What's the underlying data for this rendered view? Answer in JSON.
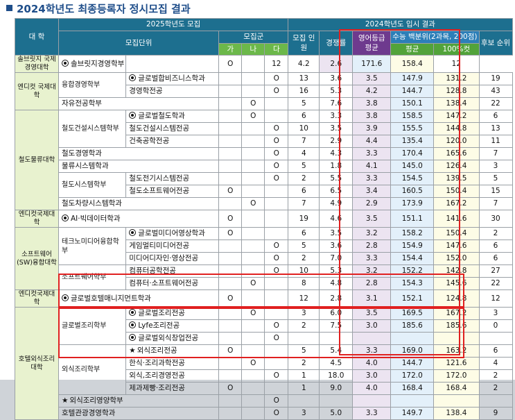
{
  "title": "2024학년도 최종등록자 정시모집 결과",
  "headers": {
    "univ": "대 학",
    "section_2025": "2025학년도 모집",
    "unit": "모집단위",
    "group": "모집군",
    "ga": "가",
    "na": "나",
    "da": "다",
    "section_2024": "2024학년도 입시 결과",
    "quota": "모집 인원",
    "rate": "경쟁률",
    "eng": "영어등급 평균",
    "score": "수능 백분위(2과목, 200점)",
    "avg": "평균",
    "cut": "100%컷",
    "reserve": "후보 순위"
  },
  "rows": [
    {
      "univ": "솔브릿지 국제경영대학",
      "univ_span": 1,
      "grp": null,
      "unit": "솔브릿지경영학부",
      "mark": "circle",
      "ga": "",
      "na": "O",
      "da": "",
      "quota": "12",
      "rate": "4.2",
      "eng": "2.6",
      "avg": "171.6",
      "cut": "158.4",
      "reserve": "12"
    },
    {
      "univ": "엔디컷 국제대학",
      "univ_span": 3,
      "grp": "융합경영학부",
      "grp_span": 2,
      "unit": "글로벌합비즈니스학과",
      "mark": "circle",
      "ga": "",
      "na": "",
      "da": "O",
      "quota": "13",
      "rate": "3.6",
      "eng": "3.5",
      "avg": "147.9",
      "cut": "131.2",
      "reserve": "19"
    },
    {
      "unit": "경영학전공",
      "mark": "",
      "ga": "",
      "na": "",
      "da": "O",
      "quota": "16",
      "rate": "5.3",
      "eng": "4.2",
      "avg": "144.7",
      "cut": "128.8",
      "reserve": "43"
    },
    {
      "grp": "자유전공학부",
      "grp_span": 1,
      "grp_full": true,
      "unit": "",
      "ga": "",
      "na": "O",
      "da": "",
      "quota": "5",
      "rate": "7.6",
      "eng": "3.8",
      "avg": "150.1",
      "cut": "138.4",
      "reserve": "22"
    },
    {
      "univ": "철도물류대학",
      "univ_span": 8,
      "grp": "철도건설시스템학부",
      "grp_span": 3,
      "unit": "글로벌철도학과",
      "mark": "circle",
      "ga": "",
      "na": "O",
      "da": "",
      "quota": "6",
      "rate": "3.3",
      "eng": "3.8",
      "avg": "158.5",
      "cut": "147.2",
      "reserve": "6"
    },
    {
      "unit": "철도건설시스템전공",
      "mark": "",
      "ga": "",
      "na": "",
      "da": "O",
      "quota": "10",
      "rate": "3.5",
      "eng": "3.9",
      "avg": "155.5",
      "cut": "144.8",
      "reserve": "13"
    },
    {
      "unit": "건축공학전공",
      "mark": "",
      "ga": "",
      "na": "",
      "da": "O",
      "quota": "7",
      "rate": "2.9",
      "eng": "4.4",
      "avg": "135.4",
      "cut": "120.0",
      "reserve": "11"
    },
    {
      "grp": "철도경영학과",
      "grp_span": 1,
      "grp_full": true,
      "unit": "",
      "ga": "",
      "na": "",
      "da": "O",
      "quota": "4",
      "rate": "4.3",
      "eng": "3.3",
      "avg": "170.4",
      "cut": "165.6",
      "reserve": "7"
    },
    {
      "grp": "물류시스템학과",
      "grp_span": 1,
      "grp_full": true,
      "unit": "",
      "ga": "",
      "na": "",
      "da": "O",
      "quota": "5",
      "rate": "1.8",
      "eng": "4.1",
      "avg": "145.0",
      "cut": "126.4",
      "reserve": "3"
    },
    {
      "grp": "철도시스템학부",
      "grp_span": 2,
      "unit": "철도전기시스템전공",
      "mark": "",
      "ga": "",
      "na": "",
      "da": "O",
      "quota": "2",
      "rate": "5.5",
      "eng": "3.3",
      "avg": "154.5",
      "cut": "139.5",
      "reserve": "5"
    },
    {
      "unit": "철도소프트웨어전공",
      "mark": "",
      "ga": "O",
      "na": "",
      "da": "",
      "quota": "6",
      "rate": "6.5",
      "eng": "3.4",
      "avg": "160.5",
      "cut": "150.4",
      "reserve": "15"
    },
    {
      "grp": "철도차량시스템학과",
      "grp_span": 1,
      "grp_full": true,
      "unit": "",
      "ga": "",
      "na": "O",
      "da": "",
      "quota": "7",
      "rate": "4.9",
      "eng": "2.9",
      "avg": "173.9",
      "cut": "167.2",
      "reserve": "7"
    },
    {
      "univ": "엔디컷국제대학",
      "univ_span": 1,
      "grp": "AI·빅데이터학과",
      "grp_span": 1,
      "grp_full": true,
      "grp_mark": "circle",
      "unit": "",
      "ga": "O",
      "na": "",
      "da": "",
      "quota": "19",
      "rate": "4.6",
      "eng": "3.5",
      "avg": "151.1",
      "cut": "141.6",
      "reserve": "30"
    },
    {
      "univ": "소프트웨어(SW)융합대학",
      "univ_span": 5,
      "grp": "테크노미디어융합학부",
      "grp_span": 3,
      "unit": "글로벌미디어영상학과",
      "mark": "circle",
      "ga": "O",
      "na": "",
      "da": "",
      "quota": "6",
      "rate": "3.5",
      "eng": "3.2",
      "avg": "158.2",
      "cut": "150.4",
      "reserve": "2"
    },
    {
      "unit": "게임멀티미디어전공",
      "mark": "",
      "ga": "",
      "na": "",
      "da": "O",
      "quota": "5",
      "rate": "3.6",
      "eng": "2.8",
      "avg": "154.9",
      "cut": "147.6",
      "reserve": "6"
    },
    {
      "unit": "미디어디자인·영상전공",
      "mark": "",
      "ga": "",
      "na": "",
      "da": "O",
      "quota": "2",
      "rate": "7.0",
      "eng": "3.3",
      "avg": "154.4",
      "cut": "152.0",
      "reserve": "6"
    },
    {
      "grp": "소프트웨어학부",
      "grp_span": 2,
      "unit": "컴퓨터공학전공",
      "mark": "",
      "ga": "",
      "na": "",
      "da": "O",
      "quota": "10",
      "rate": "5.3",
      "eng": "3.2",
      "avg": "152.2",
      "cut": "142.8",
      "reserve": "27"
    },
    {
      "unit": "컴퓨터·소프트웨어전공",
      "mark": "",
      "ga": "",
      "na": "O",
      "da": "",
      "quota": "8",
      "rate": "4.8",
      "eng": "2.8",
      "avg": "154.3",
      "cut": "145.6",
      "reserve": "22"
    },
    {
      "univ": "엔디컷국제대학",
      "univ_span": 1,
      "grp": "글로벌호텔매니지먼트학과",
      "grp_span": 1,
      "grp_full": true,
      "grp_mark": "circle",
      "unit": "",
      "ga": "O",
      "na": "",
      "da": "",
      "quota": "12",
      "rate": "2.8",
      "eng": "3.1",
      "avg": "152.1",
      "cut": "124.8",
      "reserve": "12"
    },
    {
      "univ": "호텔외식조리대학",
      "univ_span": 9,
      "grp": "글로벌조리학부",
      "grp_span": 3,
      "unit": "글로벌조리전공",
      "mark": "circle",
      "ga": "",
      "na": "O",
      "da": "",
      "quota": "3",
      "rate": "6.0",
      "eng": "3.5",
      "avg": "169.5",
      "cut": "167.2",
      "reserve": "3"
    },
    {
      "unit": "Lyfe조리전공",
      "mark": "circle",
      "ga": "",
      "na": "",
      "da": "O",
      "quota": "2",
      "rate": "7.5",
      "eng": "3.0",
      "avg": "185.6",
      "cut": "185.6",
      "reserve": "0"
    },
    {
      "unit": "글로벌외식창업전공",
      "mark": "circle",
      "ga": "",
      "na": "",
      "da": "O",
      "quota": "",
      "rate": "",
      "eng": "",
      "avg": "",
      "cut": "",
      "reserve": ""
    },
    {
      "grp": "외식조리학부",
      "grp_span": 4,
      "unit": "외식조리전공",
      "mark": "star",
      "ga": "O",
      "na": "",
      "da": "",
      "quota": "5",
      "rate": "5.4",
      "eng": "3.3",
      "avg": "169.0",
      "cut": "163.2",
      "reserve": "6"
    },
    {
      "unit": "한식·조리과학전공",
      "mark": "",
      "ga": "",
      "na": "O",
      "da": "",
      "quota": "2",
      "rate": "4.5",
      "eng": "4.0",
      "avg": "144.7",
      "cut": "121.6",
      "reserve": "4"
    },
    {
      "unit": "외식,조리경영전공",
      "mark": "",
      "ga": "",
      "na": "",
      "da": "O",
      "quota": "1",
      "rate": "18.0",
      "eng": "3.0",
      "avg": "172.0",
      "cut": "172.0",
      "reserve": "2"
    },
    {
      "unit": "제과제빵·조리전공",
      "mark": "",
      "ga": "O",
      "na": "",
      "da": "",
      "quota": "1",
      "rate": "9.0",
      "eng": "4.0",
      "avg": "168.4",
      "cut": "168.4",
      "reserve": "2"
    },
    {
      "grp": "외식조리영양학부",
      "grp_span": 1,
      "grp_full": true,
      "grp_mark": "star",
      "unit": "",
      "ga": "",
      "na": "",
      "da": "O",
      "quota": "",
      "rate": "",
      "eng": "",
      "avg": "",
      "cut": "",
      "reserve": ""
    },
    {
      "grp": "호텔관광경영학과",
      "grp_span": 1,
      "grp_full": true,
      "unit": "",
      "ga": "",
      "na": "",
      "da": "O",
      "quota": "3",
      "rate": "5.0",
      "eng": "3.3",
      "avg": "149.7",
      "cut": "138.4",
      "reserve": "9"
    }
  ]
}
